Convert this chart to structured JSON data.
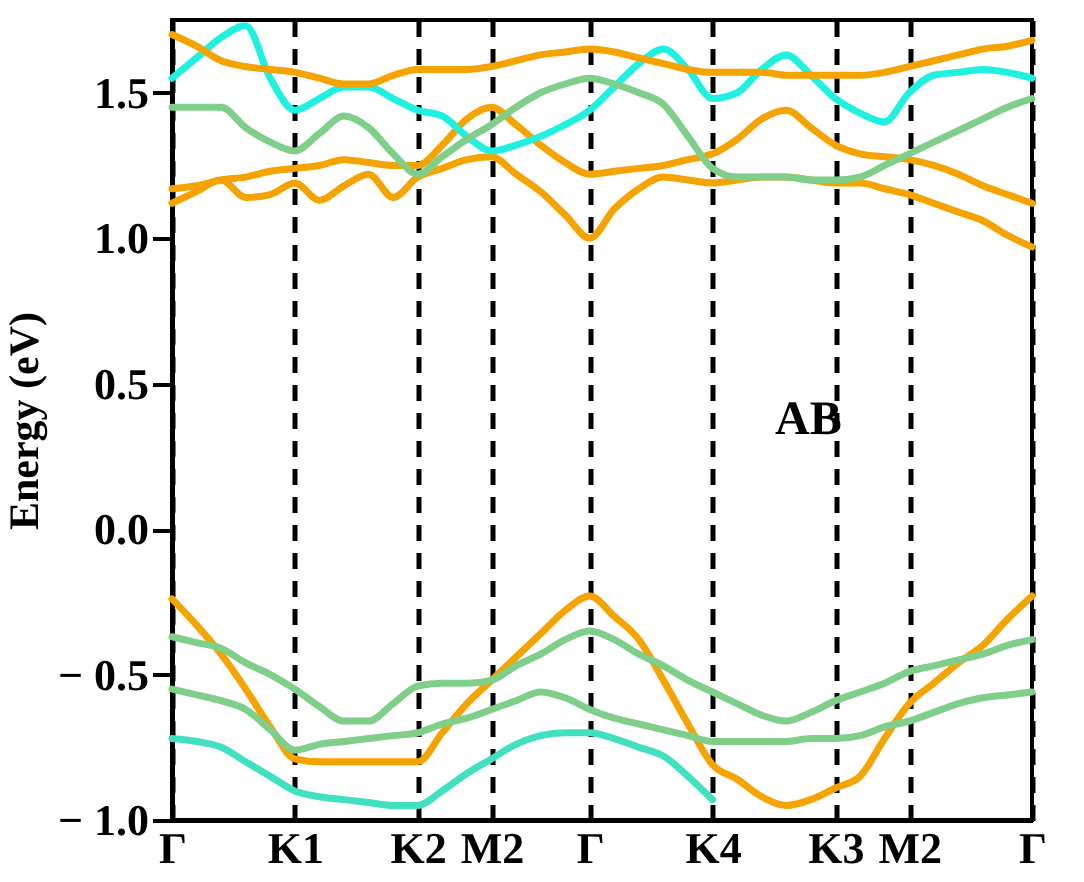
{
  "chart_data": {
    "type": "line",
    "ylabel": "Energy (eV)",
    "annotations": [
      "AB"
    ],
    "grid": "x",
    "marker": "none",
    "line_style": "solid",
    "categories": [
      "Γ",
      null,
      null,
      null,
      null,
      "K1",
      null,
      null,
      null,
      null,
      "K2",
      null,
      null,
      "M2",
      null,
      null,
      null,
      "Γ",
      null,
      null,
      null,
      null,
      "K4",
      null,
      null,
      null,
      null,
      "K3",
      null,
      null,
      "M2",
      null,
      null,
      null,
      null,
      "Γ"
    ],
    "ylim": [
      -1.0,
      1.75
    ],
    "yticks": [
      {
        "value": -1.0,
        "label": "− 1.0"
      },
      {
        "value": -0.5,
        "label": "− 0.5"
      },
      {
        "value": 0,
        "label": "0.0"
      },
      {
        "value": 0.5,
        "label": "0.5"
      },
      {
        "value": 1.0,
        "label": "1.0"
      },
      {
        "value": 1.5,
        "label": "1.5"
      }
    ],
    "series": [
      {
        "color": "#f5a300",
        "values": [
          -0.24,
          -0.33,
          -0.43,
          -0.55,
          -0.68,
          -0.79,
          -0.8,
          -0.8,
          -0.8,
          -0.8,
          -0.8,
          -0.7,
          -0.6,
          -0.52,
          -0.44,
          -0.36,
          -0.28,
          -0.23,
          -0.3,
          -0.38,
          -0.52,
          -0.67,
          -0.81,
          -0.86,
          -0.92,
          -0.95,
          -0.93,
          -0.89,
          -0.85,
          -0.72,
          -0.6,
          -0.53,
          -0.46,
          -0.4,
          -0.31,
          -0.23
        ]
      },
      {
        "color": "#7fcf8a",
        "values": [
          -0.37,
          -0.39,
          -0.41,
          -0.46,
          -0.5,
          -0.55,
          -0.61,
          -0.66,
          -0.66,
          -0.6,
          -0.54,
          -0.53,
          -0.53,
          -0.52,
          -0.47,
          -0.43,
          -0.38,
          -0.35,
          -0.38,
          -0.43,
          -0.47,
          -0.52,
          -0.56,
          -0.6,
          -0.64,
          -0.66,
          -0.63,
          -0.59,
          -0.56,
          -0.53,
          -0.49,
          -0.47,
          -0.45,
          -0.43,
          -0.4,
          -0.38
        ]
      },
      {
        "color": "#7fcf8a",
        "values": [
          -0.55,
          -0.57,
          -0.59,
          -0.62,
          -0.69,
          -0.76,
          -0.74,
          -0.73,
          -0.72,
          -0.71,
          -0.7,
          -0.67,
          -0.65,
          -0.62,
          -0.59,
          -0.56,
          -0.58,
          -0.62,
          -0.65,
          -0.67,
          -0.69,
          -0.71,
          -0.73,
          -0.73,
          -0.73,
          -0.73,
          -0.72,
          -0.72,
          -0.71,
          -0.68,
          -0.66,
          -0.63,
          -0.6,
          -0.58,
          -0.57,
          -0.56
        ]
      },
      {
        "color": "#40e0c0",
        "values": [
          -0.72,
          -0.73,
          -0.75,
          -0.8,
          -0.85,
          -0.9,
          -0.92,
          -0.93,
          -0.94,
          -0.95,
          -0.95,
          -0.9,
          -0.84,
          -0.79,
          -0.74,
          -0.71,
          -0.7,
          -0.7,
          -0.72,
          -0.75,
          -0.78,
          -0.85,
          -0.93,
          null,
          null,
          null,
          null,
          null,
          null,
          null,
          null,
          null,
          null,
          null,
          null,
          null
        ]
      },
      {
        "color": "#f5a300",
        "values": [
          1.12,
          1.16,
          1.2,
          1.14,
          1.15,
          1.19,
          1.13,
          1.18,
          1.22,
          1.14,
          1.21,
          1.24,
          1.27,
          1.28,
          1.22,
          1.16,
          1.08,
          1.0,
          1.1,
          1.17,
          1.21,
          1.2,
          1.19,
          1.2,
          1.21,
          1.21,
          1.2,
          1.19,
          1.19,
          1.17,
          1.15,
          1.12,
          1.09,
          1.06,
          1.01,
          0.97
        ]
      },
      {
        "color": "#f5a300",
        "values": [
          1.17,
          1.18,
          1.2,
          1.21,
          1.23,
          1.24,
          1.25,
          1.27,
          1.26,
          1.25,
          1.25,
          1.32,
          1.41,
          1.45,
          1.39,
          1.32,
          1.26,
          1.22,
          1.23,
          1.24,
          1.25,
          1.27,
          1.29,
          1.34,
          1.41,
          1.44,
          1.38,
          1.32,
          1.29,
          1.28,
          1.27,
          1.25,
          1.22,
          1.18,
          1.15,
          1.12
        ]
      },
      {
        "color": "#20f0e0",
        "values": [
          1.55,
          1.62,
          1.69,
          1.73,
          1.55,
          1.44,
          1.48,
          1.52,
          1.52,
          1.48,
          1.44,
          1.42,
          1.35,
          1.3,
          1.32,
          1.35,
          1.39,
          1.44,
          1.52,
          1.6,
          1.65,
          1.58,
          1.48,
          1.5,
          1.58,
          1.63,
          1.56,
          1.48,
          1.43,
          1.4,
          1.5,
          1.56,
          1.57,
          1.58,
          1.57,
          1.55
        ]
      },
      {
        "color": "#f5a300",
        "values": [
          1.7,
          1.66,
          1.61,
          1.59,
          1.58,
          1.57,
          1.55,
          1.53,
          1.53,
          1.56,
          1.58,
          1.58,
          1.58,
          1.59,
          1.61,
          1.63,
          1.64,
          1.65,
          1.64,
          1.62,
          1.6,
          1.58,
          1.57,
          1.57,
          1.57,
          1.56,
          1.56,
          1.56,
          1.56,
          1.57,
          1.59,
          1.61,
          1.63,
          1.65,
          1.66,
          1.68
        ]
      },
      {
        "color": "#7fcf8a",
        "values": [
          1.45,
          1.45,
          1.45,
          1.38,
          1.33,
          1.3,
          1.36,
          1.42,
          1.38,
          1.29,
          1.22,
          1.28,
          1.34,
          1.39,
          1.45,
          1.5,
          1.53,
          1.55,
          1.53,
          1.5,
          1.46,
          1.35,
          1.24,
          1.21,
          1.21,
          1.21,
          1.2,
          1.2,
          1.21,
          1.25,
          1.29,
          1.33,
          1.37,
          1.41,
          1.45,
          1.48
        ]
      }
    ]
  }
}
